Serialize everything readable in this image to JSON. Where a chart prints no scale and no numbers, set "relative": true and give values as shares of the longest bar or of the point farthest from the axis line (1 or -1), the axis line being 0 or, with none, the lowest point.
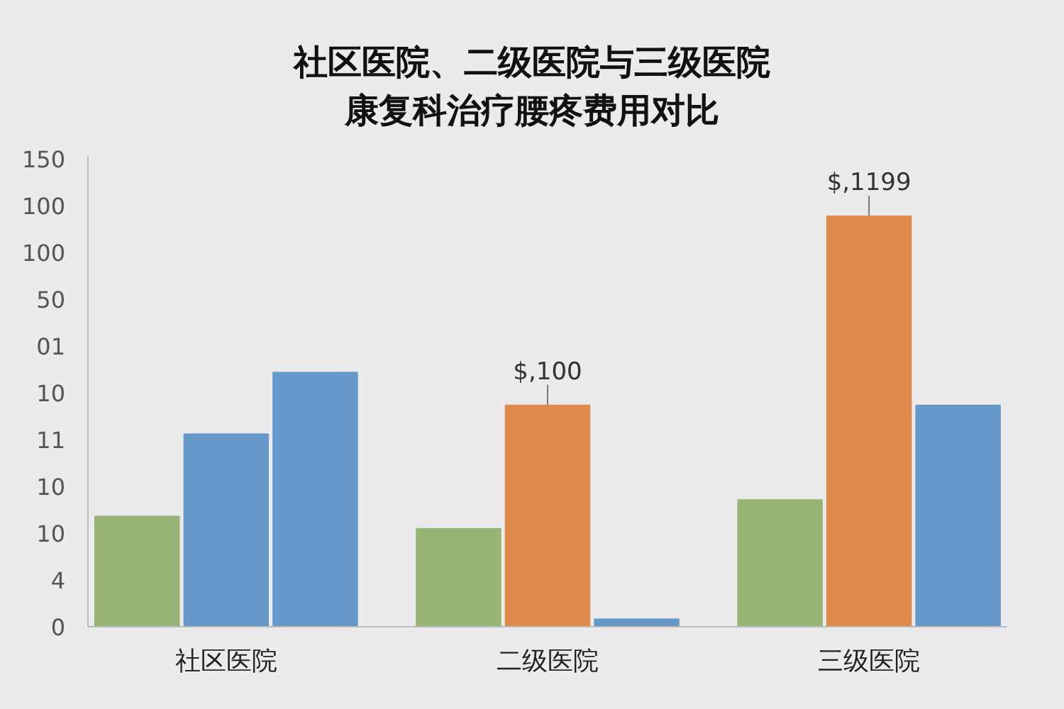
{
  "chart_data": {
    "type": "bar",
    "title": "社区医院、二级医院与三级医院康复科治疗腰疼费用对比",
    "categories": [
      "社区医院",
      "二级医院",
      "三级医院"
    ],
    "relative": true,
    "series": [
      {
        "color": "#97b474",
        "values": [
          0.27,
          0.24,
          0.31
        ]
      },
      {
        "colors": [
          "#6699c9",
          "#dd8a4b",
          "#dd8a4b"
        ],
        "values": [
          0.47,
          0.54,
          1
        ]
      },
      {
        "color": "#6699c9",
        "values": [
          0.62,
          0.02,
          0.54
        ]
      }
    ],
    "annotations": [
      "150",
      "100",
      "100",
      "50",
      "01",
      "10",
      "11",
      "10",
      "10",
      "4",
      "0",
      {
        "text": "$,100",
        "x": "二级医院",
        "y": 0.54
      },
      {
        "text": "$,1199",
        "x": "三级医院",
        "y": 1
      }
    ]
  }
}
